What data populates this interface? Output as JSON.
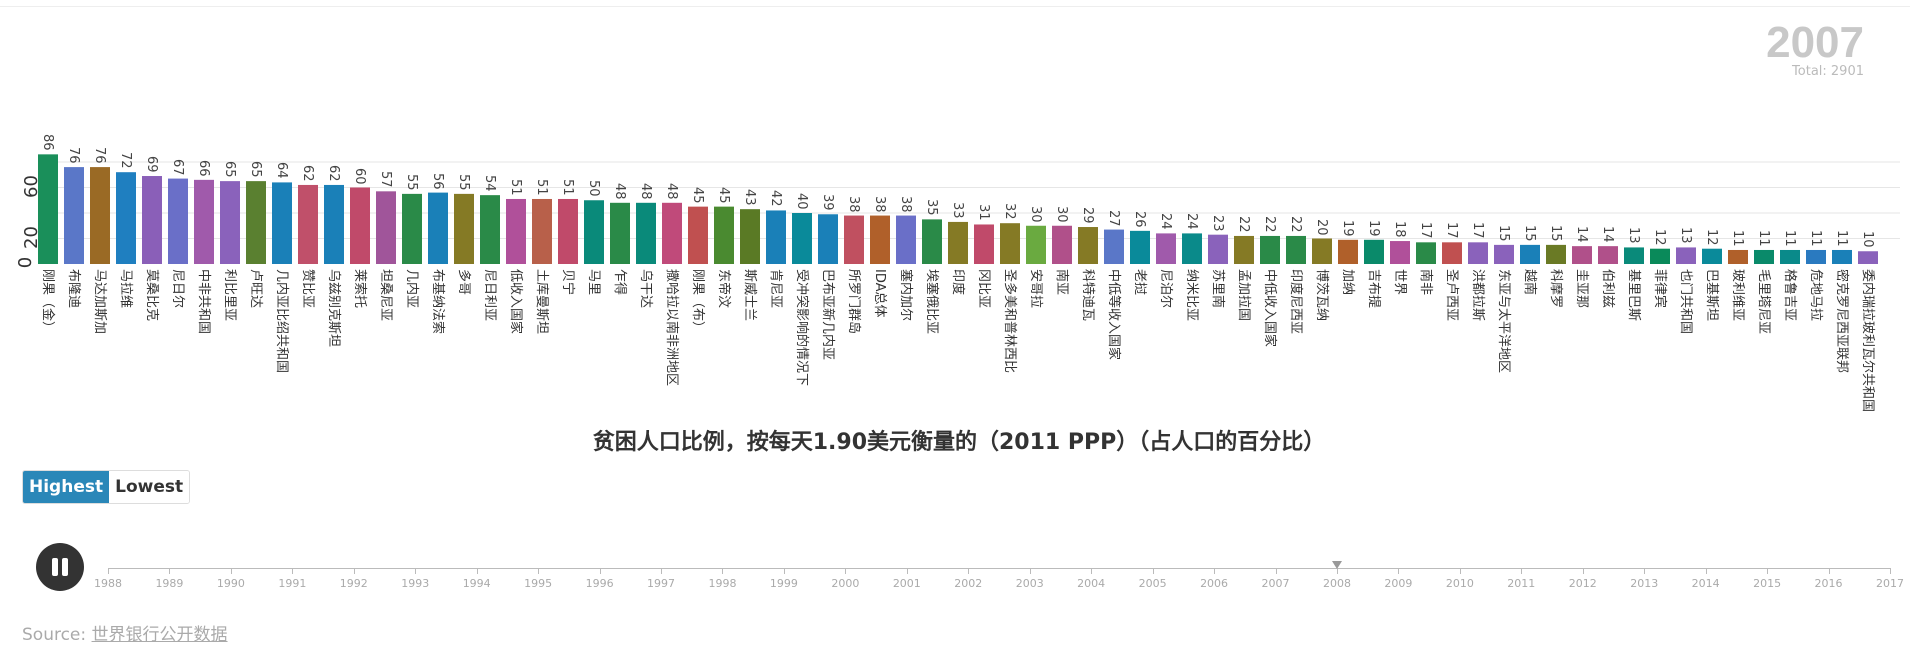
{
  "header": {
    "year": "2007",
    "total": "Total: 2901"
  },
  "controls": {
    "highest": "Highest",
    "lowest": "Lowest",
    "play_state": "pause",
    "timeline_years": [
      "1988",
      "1989",
      "1990",
      "1991",
      "1992",
      "1993",
      "1994",
      "1995",
      "1996",
      "1997",
      "1998",
      "1999",
      "2000",
      "2001",
      "2002",
      "2003",
      "2004",
      "2005",
      "2006",
      "2007",
      "2008",
      "2009",
      "2010",
      "2011",
      "2012",
      "2013",
      "2014",
      "2015",
      "2016",
      "2017"
    ],
    "marker_year": "2008"
  },
  "source": {
    "prefix": "Source: ",
    "link": "世界银行公开数据"
  },
  "chart_data": {
    "type": "bar",
    "title": "贫困人口比例，按每天1.90美元衡量的（2011 PPP）（占人口的百分比）",
    "ylim": [
      0,
      86
    ],
    "yticks": [
      "0",
      "20",
      "60"
    ],
    "grid": true,
    "sort": "descending",
    "categories": [
      "刚果（金）",
      "布隆迪",
      "马达加斯加",
      "马拉维",
      "莫桑比克",
      "尼日尔",
      "中非共和国",
      "利比里亚",
      "卢旺达",
      "几内亚比绍共和国",
      "赞比亚",
      "乌兹别克斯坦",
      "莱索托",
      "坦桑尼亚",
      "几内亚",
      "布基纳法索",
      "多哥",
      "尼日利亚",
      "低收入国家",
      "土库曼斯坦",
      "贝宁",
      "马里",
      "乍得",
      "乌干达",
      "撒哈拉以南非洲地区",
      "刚果（布）",
      "东帝汶",
      "斯威士兰",
      "肯尼亚",
      "受冲突影响的情况下",
      "巴布亚新几内亚",
      "所罗门群岛",
      "IDA总体",
      "塞内加尔",
      "埃塞俄比亚",
      "印度",
      "冈比亚",
      "圣多美和普林西比",
      "安哥拉",
      "南亚",
      "科特迪瓦",
      "中低等收入国家",
      "老挝",
      "尼泊尔",
      "纳米比亚",
      "苏里南",
      "孟加拉国",
      "中低收入国家",
      "印度尼西亚",
      "博茨瓦纳",
      "加纳",
      "吉布提",
      "世界",
      "南非",
      "圣卢西亚",
      "洪都拉斯",
      "东亚与太平洋地区",
      "越南",
      "科摩罗",
      "圭亚那",
      "伯利兹",
      "基里巴斯",
      "菲律宾",
      "也门共和国",
      "巴基斯坦",
      "玻利维亚",
      "毛里塔尼亚",
      "格鲁吉亚",
      "危地马拉",
      "密克罗尼西亚联邦",
      "委内瑞拉玻利瓦尔共和国"
    ],
    "values": [
      86,
      76,
      76,
      72,
      69,
      67,
      66,
      65,
      65,
      64,
      62,
      62,
      60,
      57,
      55,
      56,
      55,
      54,
      51,
      51,
      51,
      50,
      48,
      48,
      48,
      45,
      45,
      43,
      42,
      40,
      39,
      38,
      38,
      38,
      35,
      33,
      31,
      32,
      30,
      30,
      29,
      27,
      26,
      24,
      24,
      23,
      22,
      22,
      22,
      20,
      19,
      19,
      18,
      17,
      17,
      17,
      15,
      15,
      15,
      14,
      14,
      13,
      12,
      13,
      12,
      11,
      11,
      11,
      11,
      11,
      10
    ],
    "colors": [
      "#1a8f5a",
      "#5a77c8",
      "#9a6a25",
      "#1f7fc0",
      "#8a5fb8",
      "#6a6fc8",
      "#a05aab",
      "#8a62bb",
      "#5a8030",
      "#1a80b8",
      "#c0506a",
      "#1a80b8",
      "#c04a6a",
      "#a0559a",
      "#2a8a48",
      "#1a80b8",
      "#857a25",
      "#2a8a48",
      "#b0509a",
      "#b8604a",
      "#c04a6a",
      "#0a8a7a",
      "#2a8a48",
      "#0a8a7a",
      "#c04a7a",
      "#c05050",
      "#4a8a30",
      "#5a7a25",
      "#1a80b8",
      "#0a8a9a",
      "#1a80b8",
      "#c05060",
      "#b0602a",
      "#6a6fc8",
      "#2a8a48",
      "#857a25",
      "#c04a6a",
      "#857a25",
      "#6aaa40",
      "#b0508a",
      "#857a25",
      "#5a77c8",
      "#0a8a9a",
      "#a05aab",
      "#0a8a8a",
      "#8a62bb",
      "#857a25",
      "#2a8a48",
      "#2a8a48",
      "#857a25",
      "#b0602a",
      "#0a8a6a",
      "#b0509a",
      "#2a8a48",
      "#c05050",
      "#8a62bb",
      "#8a62bb",
      "#1a80b8",
      "#6a7a25",
      "#b0508a",
      "#b0508a",
      "#0a8a7a",
      "#0a8a5a",
      "#8a62bb",
      "#0a8a9a",
      "#b0602a",
      "#0a8a6a",
      "#0a8a8a",
      "#2a7ac0",
      "#1a80b8",
      "#8a62bb"
    ]
  }
}
